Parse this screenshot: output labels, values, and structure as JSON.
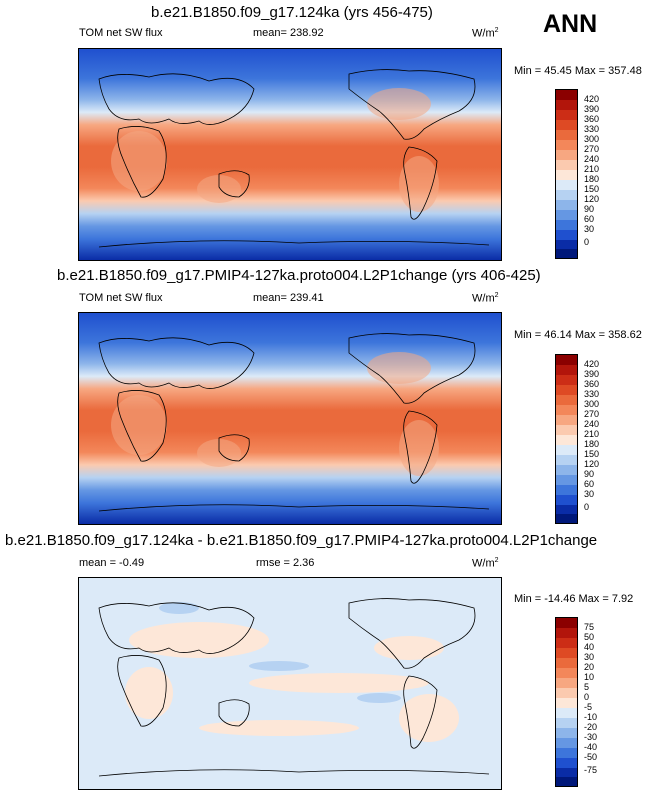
{
  "season": "ANN",
  "units": "W/m",
  "units_exp": "2",
  "panels": [
    {
      "title": "b.e21.B1850.f09_g17.124ka (yrs 456-475)",
      "left_label": "TOM net SW flux",
      "center_label": "mean= 238.92",
      "minmax": "Min =  45.45 Max = 357.48",
      "colorbar": {
        "labels": [
          "420",
          "390",
          "360",
          "330",
          "300",
          "270",
          "240",
          "210",
          "180",
          "150",
          "120",
          "90",
          "60",
          "30",
          "0"
        ],
        "colors": [
          "#8b0000",
          "#b2150b",
          "#cc2d16",
          "#de4a24",
          "#ea6a3c",
          "#f3875a",
          "#f7a781",
          "#fbcaaf",
          "#fde7d8",
          "#dceaf8",
          "#b6d2f2",
          "#8db5ea",
          "#6597e3",
          "#3d75db",
          "#1f50cf",
          "#0a2ca6",
          "#00187a"
        ]
      }
    },
    {
      "title": "b.e21.B1850.f09_g17.PMIP4-127ka.proto004.L2P1change (yrs 406-425)",
      "left_label": "TOM net SW flux",
      "center_label": "mean= 239.41",
      "minmax": "Min =  46.14 Max = 358.62",
      "colorbar": {
        "labels": [
          "420",
          "390",
          "360",
          "330",
          "300",
          "270",
          "240",
          "210",
          "180",
          "150",
          "120",
          "90",
          "60",
          "30",
          "0"
        ],
        "colors": [
          "#8b0000",
          "#b2150b",
          "#cc2d16",
          "#de4a24",
          "#ea6a3c",
          "#f3875a",
          "#f7a781",
          "#fbcaaf",
          "#fde7d8",
          "#dceaf8",
          "#b6d2f2",
          "#8db5ea",
          "#6597e3",
          "#3d75db",
          "#1f50cf",
          "#0a2ca6",
          "#00187a"
        ]
      }
    },
    {
      "title": "b.e21.B1850.f09_g17.124ka - b.e21.B1850.f09_g17.PMIP4-127ka.proto004.L2P1change",
      "left_label": "mean =  -0.49",
      "center_label": "rmse =   2.36",
      "minmax": "Min = -14.46 Max =   7.92",
      "colorbar": {
        "labels": [
          "75",
          "50",
          "40",
          "30",
          "20",
          "10",
          "5",
          "0",
          "-5",
          "-10",
          "-20",
          "-30",
          "-40",
          "-50",
          "-75"
        ],
        "colors": [
          "#8b0000",
          "#b2150b",
          "#cc2d16",
          "#de4a24",
          "#ea6a3c",
          "#f3875a",
          "#f7a781",
          "#fbcaaf",
          "#fde7d8",
          "#dceaf8",
          "#b6d2f2",
          "#8db5ea",
          "#6597e3",
          "#3d75db",
          "#1f50cf",
          "#0a2ca6",
          "#00187a"
        ]
      }
    }
  ]
}
